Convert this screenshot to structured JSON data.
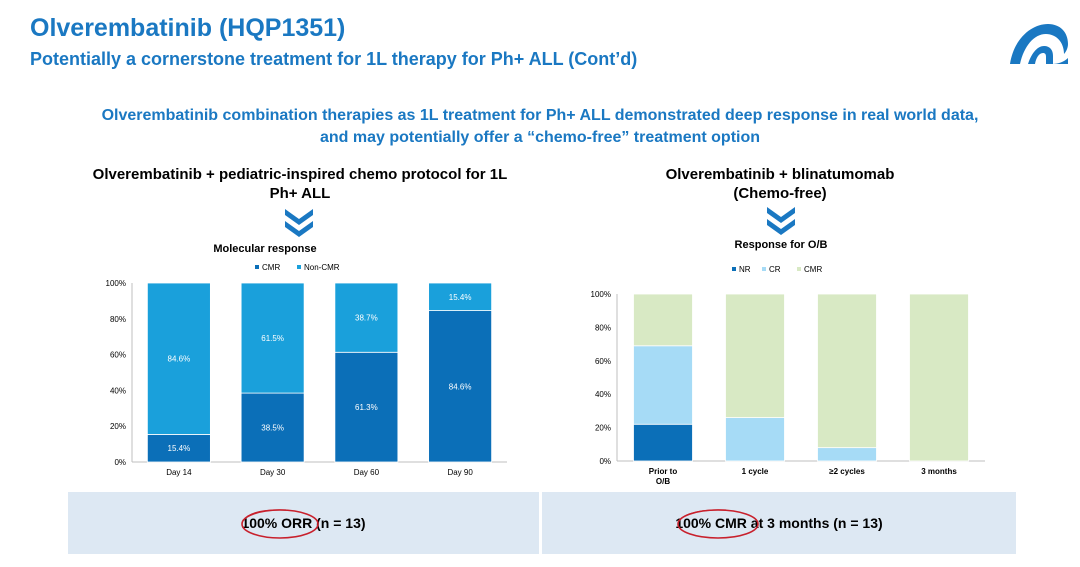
{
  "header": {
    "title": "Olverembatinib (HQP1351)",
    "subtitle": "Potentially a cornerstone treatment for 1L therapy for Ph+ ALL (Cont’d)",
    "logo_icon": "company-logo-icon"
  },
  "headline": {
    "line1": "Olverembatinib combination therapies as 1L treatment for Ph+ ALL demonstrated deep response in real world data,",
    "line2": "and may potentially offer a “chemo-free” treatment option"
  },
  "left_panel": {
    "title_line1": "Olverembatinib + pediatric-inspired chemo protocol for 1L",
    "title_line2": "Ph+ ALL",
    "footer_highlight": "100% ORR",
    "footer_rest": " (n = 13)"
  },
  "right_panel": {
    "title_line1": "Olverembatinib + blinatumomab",
    "title_line2": "(Chemo-free)",
    "footer_highlight": "100% CMR",
    "footer_rest": " at 3 months (n = 13)"
  },
  "colors": {
    "brand_blue": "#1a78c2",
    "cmr_dark": "#0b6fb8",
    "noncmr_light": "#1aa0db",
    "nr_dark": "#0b6fb8",
    "cr_light": "#a6dbf6",
    "cmr_green": "#d8e9c4",
    "circle_red": "#c8202c"
  },
  "chart_data": [
    {
      "type": "bar",
      "stacked": true,
      "title": "Molecular response",
      "categories": [
        "Day 14",
        "Day 30",
        "Day 60",
        "Day 90"
      ],
      "series": [
        {
          "name": "CMR",
          "values": [
            15.4,
            38.5,
            61.3,
            84.6
          ],
          "labels": [
            "15.4%",
            "38.5%",
            "61.3%",
            "84.6%"
          ]
        },
        {
          "name": "Non-CMR",
          "values": [
            84.6,
            61.5,
            38.7,
            15.4
          ],
          "labels": [
            "84.6%",
            "61.5%",
            "38.7%",
            "15.4%"
          ]
        }
      ],
      "yticks": [
        "0%",
        "20%",
        "40%",
        "60%",
        "80%",
        "100%"
      ],
      "ylim": [
        0,
        100
      ],
      "legend": "top-center"
    },
    {
      "type": "bar",
      "stacked": true,
      "title": "Response for O/B",
      "categories": [
        "Prior to O/B",
        "1 cycle",
        "≥2 cycles",
        "3 months"
      ],
      "category_lines": [
        [
          "Prior to",
          "O/B"
        ],
        [
          "1 cycle"
        ],
        [
          "≥2 cycles"
        ],
        [
          "3 months"
        ]
      ],
      "series": [
        {
          "name": "NR",
          "values": [
            22,
            0,
            0,
            0
          ]
        },
        {
          "name": "CR",
          "values": [
            47,
            26,
            8,
            0
          ]
        },
        {
          "name": "CMR",
          "values": [
            31,
            74,
            92,
            100
          ]
        }
      ],
      "yticks": [
        "0%",
        "20%",
        "40%",
        "60%",
        "80%",
        "100%"
      ],
      "ylim": [
        0,
        100
      ],
      "legend": "top-center"
    }
  ]
}
